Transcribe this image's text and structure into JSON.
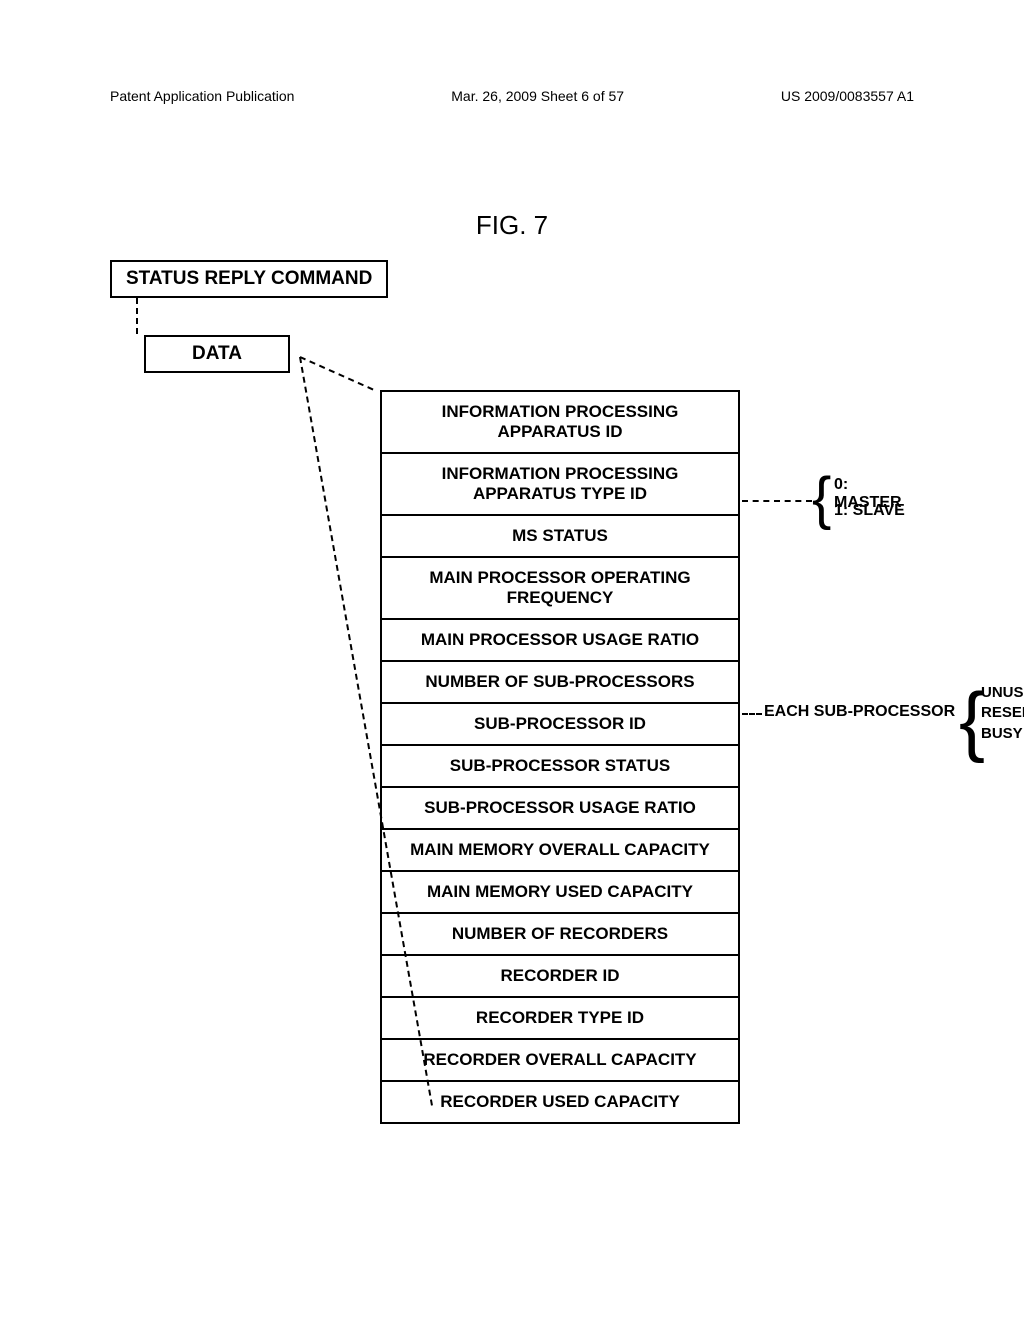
{
  "header": {
    "left": "Patent Application Publication",
    "center": "Mar. 26, 2009  Sheet 6 of 57",
    "right": "US 2009/0083557 A1"
  },
  "figure": {
    "title": "FIG. 7",
    "command_box": "STATUS REPLY COMMAND",
    "data_box": "DATA",
    "rows": [
      "INFORMATION PROCESSING APPARATUS ID",
      "INFORMATION PROCESSING APPARATUS TYPE ID",
      "MS STATUS",
      "MAIN PROCESSOR OPERATING FREQUENCY",
      "MAIN PROCESSOR USAGE RATIO",
      "NUMBER OF SUB-PROCESSORS",
      "SUB-PROCESSOR ID",
      "SUB-PROCESSOR STATUS",
      "SUB-PROCESSOR USAGE RATIO",
      "MAIN MEMORY OVERALL CAPACITY",
      "MAIN MEMORY USED CAPACITY",
      "NUMBER OF RECORDERS",
      "RECORDER ID",
      "RECORDER TYPE ID",
      "RECORDER OVERALL CAPACITY",
      "RECORDER USED CAPACITY"
    ],
    "ms_status_options": {
      "line1": "0: MASTER",
      "line2": "1: SLAVE"
    },
    "subproc_label": "EACH SUB-PROCESSOR",
    "subproc_states": {
      "line1": "UNUSED",
      "line2": "RESERVED",
      "line3": "BUSY"
    }
  },
  "style": {
    "font_family": "Arial, Helvetica, sans-serif",
    "bg_color": "#ffffff",
    "text_color": "#000000",
    "border_color": "#000000",
    "header_fontsize": 14,
    "figtitle_fontsize": 26,
    "row_fontsize": 17,
    "sidelabel_fontsize": 16
  }
}
